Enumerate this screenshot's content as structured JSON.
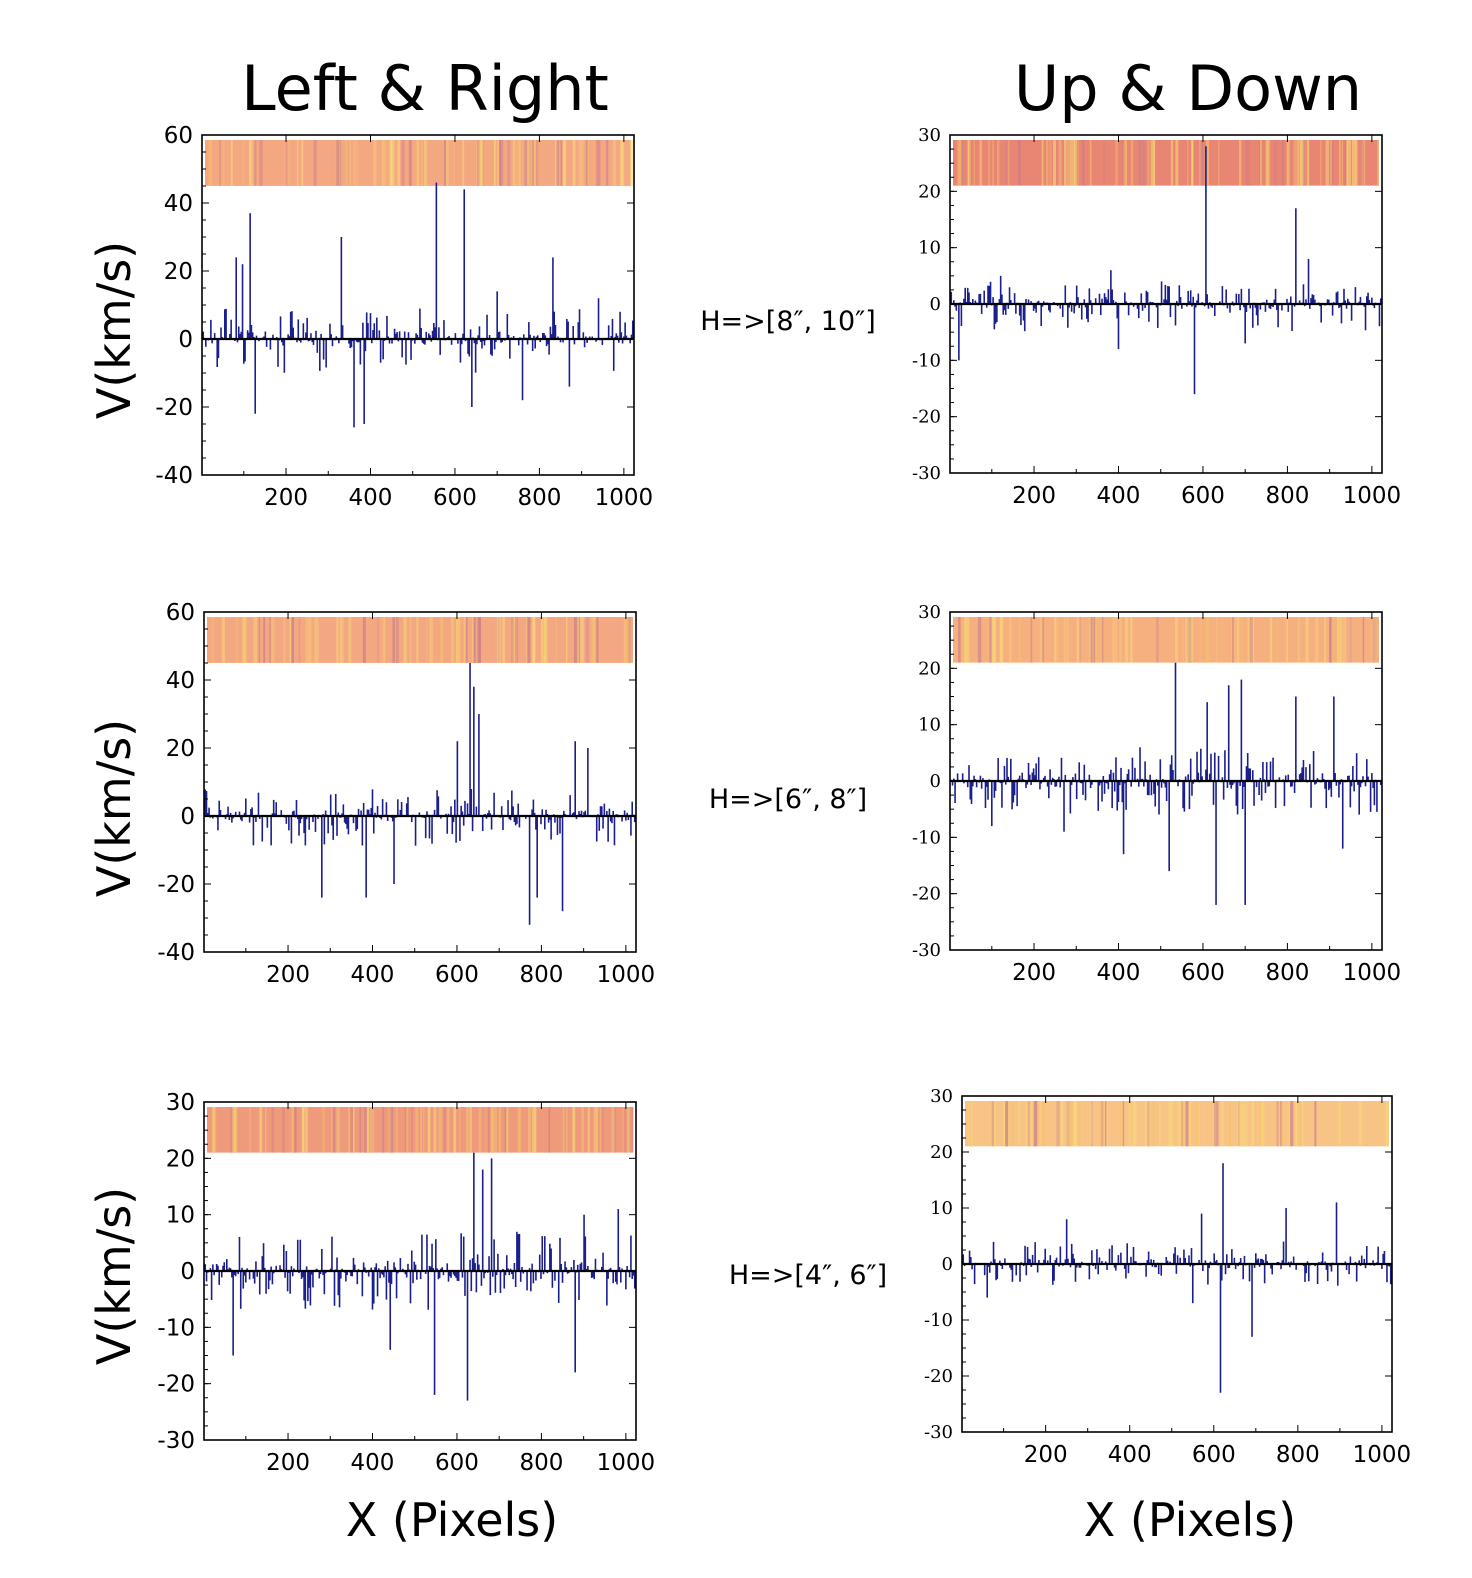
{
  "figure": {
    "col_titles": [
      "Left & Right",
      "Up & Down"
    ],
    "row_labels": [
      "H=>[8″, 10″]",
      "H=>[6″, 8″]",
      "H=>[4″, 6″]"
    ],
    "ylabel": "V(km/s)",
    "xlabel": "X (Pixels)"
  },
  "colors": {
    "line": "#1a1f8c",
    "strip_base_lr": "#f0a27a",
    "strip_base_ud": "#f5b47e"
  },
  "chart_data": [
    {
      "type": "bar",
      "name": "Left & Right, H=>[8″, 10″]",
      "xlim": [
        1,
        1024
      ],
      "ylim": [
        -40,
        60
      ],
      "xticks": [
        200,
        400,
        600,
        800,
        1000
      ],
      "yticks": [
        -40,
        -20,
        0,
        20,
        40,
        60
      ],
      "tick_labels_y": [
        "-40",
        "-20",
        "0",
        "20",
        "40",
        "60"
      ],
      "peaks": [
        [
          80,
          24
        ],
        [
          95,
          22
        ],
        [
          115,
          37
        ],
        [
          125,
          -22
        ],
        [
          210,
          8
        ],
        [
          330,
          30
        ],
        [
          360,
          -26
        ],
        [
          385,
          -25
        ],
        [
          555,
          46
        ],
        [
          620,
          44
        ],
        [
          640,
          -20
        ],
        [
          700,
          14
        ],
        [
          760,
          -18
        ],
        [
          830,
          24
        ],
        [
          870,
          -14
        ],
        [
          940,
          12
        ],
        [
          990,
          8
        ]
      ],
      "noise_pos": 9,
      "noise_neg": 10,
      "strip_color": "#f4a882",
      "ylabel_shown": true
    },
    {
      "type": "bar",
      "name": "Up & Down, H=>[8″, 10″]",
      "xlim": [
        1,
        1024
      ],
      "ylim": [
        -30,
        30
      ],
      "xticks": [
        200,
        400,
        600,
        800,
        1000
      ],
      "yticks": [
        -30,
        -20,
        -10,
        0,
        10,
        20,
        30
      ],
      "tick_labels_y": [
        "-30",
        "-20",
        "-10",
        "0",
        "10",
        "20",
        "30"
      ],
      "peaks": [
        [
          20,
          -10
        ],
        [
          120,
          5
        ],
        [
          380,
          6
        ],
        [
          400,
          -8
        ],
        [
          500,
          4
        ],
        [
          580,
          -16
        ],
        [
          605,
          28
        ],
        [
          700,
          -7
        ],
        [
          820,
          17
        ],
        [
          850,
          8
        ],
        [
          960,
          3
        ]
      ],
      "noise_pos": 4,
      "noise_neg": 5,
      "strip_color": "#e98673",
      "ylabel_shown": false
    },
    {
      "type": "bar",
      "name": "Left & Right, H=>[6″, 8″]",
      "xlim": [
        1,
        1024
      ],
      "ylim": [
        -40,
        60
      ],
      "xticks": [
        200,
        400,
        600,
        800,
        1000
      ],
      "yticks": [
        -40,
        -20,
        0,
        20,
        40,
        60
      ],
      "tick_labels_y": [
        "-40",
        "-20",
        "0",
        "20",
        "40",
        "60"
      ],
      "peaks": [
        [
          280,
          -24
        ],
        [
          385,
          -24
        ],
        [
          450,
          -20
        ],
        [
          600,
          22
        ],
        [
          630,
          45
        ],
        [
          640,
          38
        ],
        [
          650,
          30
        ],
        [
          770,
          -32
        ],
        [
          790,
          -24
        ],
        [
          850,
          -28
        ],
        [
          880,
          22
        ],
        [
          910,
          20
        ]
      ],
      "noise_pos": 8,
      "noise_neg": 9,
      "strip_color": "#f4a882",
      "ylabel_shown": true
    },
    {
      "type": "bar",
      "name": "Up & Down, H=>[6″, 8″]",
      "xlim": [
        1,
        1024
      ],
      "ylim": [
        -30,
        30
      ],
      "xticks": [
        200,
        400,
        600,
        800,
        1000
      ],
      "yticks": [
        -30,
        -20,
        -10,
        0,
        10,
        20,
        30
      ],
      "tick_labels_y": [
        "-30",
        "-20",
        "-10",
        "0",
        "10",
        "20",
        "30"
      ],
      "peaks": [
        [
          100,
          -8
        ],
        [
          270,
          -9
        ],
        [
          410,
          -13
        ],
        [
          520,
          -16
        ],
        [
          535,
          21
        ],
        [
          610,
          14
        ],
        [
          630,
          -22
        ],
        [
          660,
          17
        ],
        [
          690,
          18
        ],
        [
          700,
          -22
        ],
        [
          820,
          15
        ],
        [
          910,
          15
        ],
        [
          930,
          -12
        ]
      ],
      "noise_pos": 6,
      "noise_neg": 6,
      "strip_color": "#f6b080",
      "ylabel_shown": false
    },
    {
      "type": "bar",
      "name": "Left & Right, H=>[4″, 6″]",
      "xlim": [
        1,
        1024
      ],
      "ylim": [
        -30,
        30
      ],
      "xticks": [
        200,
        400,
        600,
        800,
        1000
      ],
      "yticks": [
        -30,
        -20,
        -10,
        0,
        10,
        20,
        30
      ],
      "tick_labels_y": [
        "-30",
        "-20",
        "-10",
        "0",
        "10",
        "20",
        "30"
      ],
      "peaks": [
        [
          70,
          -15
        ],
        [
          440,
          -14
        ],
        [
          545,
          -22
        ],
        [
          625,
          -23
        ],
        [
          640,
          21
        ],
        [
          660,
          18
        ],
        [
          680,
          20
        ],
        [
          880,
          -18
        ],
        [
          900,
          10
        ],
        [
          980,
          11
        ]
      ],
      "noise_pos": 7,
      "noise_neg": 7,
      "strip_color": "#ee9a7b",
      "ylabel_shown": true
    },
    {
      "type": "bar",
      "name": "Up & Down, H=>[4″, 6″]",
      "xlim": [
        1,
        1024
      ],
      "ylim": [
        -30,
        30
      ],
      "xticks": [
        200,
        400,
        600,
        800,
        1000
      ],
      "yticks": [
        -30,
        -20,
        -10,
        0,
        10,
        20,
        30
      ],
      "tick_labels_y": [
        "-30",
        "-20",
        "-10",
        "0",
        "10",
        "20",
        "30"
      ],
      "peaks": [
        [
          60,
          -6
        ],
        [
          250,
          8
        ],
        [
          550,
          -7
        ],
        [
          570,
          9
        ],
        [
          615,
          -23
        ],
        [
          620,
          18
        ],
        [
          690,
          -13
        ],
        [
          770,
          10
        ],
        [
          890,
          11
        ]
      ],
      "noise_pos": 4,
      "noise_neg": 4,
      "strip_color": "#f8c486",
      "ylabel_shown": false
    }
  ]
}
